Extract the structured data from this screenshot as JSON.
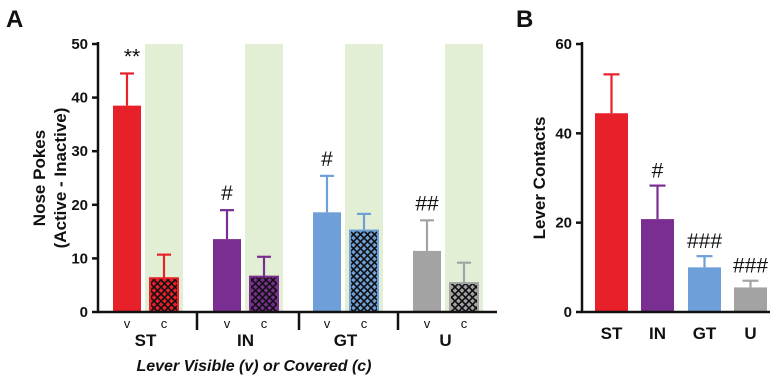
{
  "colors": {
    "ST": "#e8202a",
    "IN": "#7a2e91",
    "GT": "#6f9fd8",
    "U": "#a3a3a3",
    "shade": "#e3efd4",
    "axis": "#111111"
  },
  "chart_data": [
    {
      "panel": "A",
      "type": "bar",
      "ylabel": "Nose Pokes\n(Active - Inactive)",
      "xlabel": "Lever Visible (v) or Covered (c)",
      "ylim": [
        0,
        50
      ],
      "yticks": [
        "0",
        "10",
        "20",
        "30",
        "40",
        "50"
      ],
      "groups": [
        "ST",
        "IN",
        "GT",
        "U"
      ],
      "conditions": [
        "v",
        "c"
      ],
      "grid": false,
      "bars": [
        {
          "group": "ST",
          "condition": "v",
          "value": 38.5,
          "error": 6.0,
          "annotation": "**",
          "pattern": "solid"
        },
        {
          "group": "ST",
          "condition": "c",
          "value": 6.3,
          "error": 4.4,
          "annotation": "",
          "pattern": "crosshatch"
        },
        {
          "group": "IN",
          "condition": "v",
          "value": 13.6,
          "error": 5.4,
          "annotation": "#",
          "pattern": "solid"
        },
        {
          "group": "IN",
          "condition": "c",
          "value": 6.6,
          "error": 3.7,
          "annotation": "",
          "pattern": "crosshatch"
        },
        {
          "group": "GT",
          "condition": "v",
          "value": 18.6,
          "error": 6.8,
          "annotation": "#",
          "pattern": "solid"
        },
        {
          "group": "GT",
          "condition": "c",
          "value": 15.2,
          "error": 3.1,
          "annotation": "",
          "pattern": "crosshatch"
        },
        {
          "group": "U",
          "condition": "v",
          "value": 11.4,
          "error": 5.7,
          "annotation": "##",
          "pattern": "solid"
        },
        {
          "group": "U",
          "condition": "c",
          "value": 5.4,
          "error": 3.8,
          "annotation": "",
          "pattern": "crosshatch"
        }
      ],
      "shaded_condition": "c"
    },
    {
      "panel": "B",
      "type": "bar",
      "ylabel": "Lever Contacts",
      "xlabel": "",
      "ylim": [
        0,
        60
      ],
      "yticks": [
        "0",
        "20",
        "40",
        "60"
      ],
      "categories": [
        "ST",
        "IN",
        "GT",
        "U"
      ],
      "values": [
        44.5,
        20.8,
        10.0,
        5.5
      ],
      "errors": [
        8.7,
        7.5,
        2.5,
        1.5
      ],
      "annotations": [
        "",
        "#",
        "###",
        "###"
      ],
      "grid": false
    }
  ]
}
